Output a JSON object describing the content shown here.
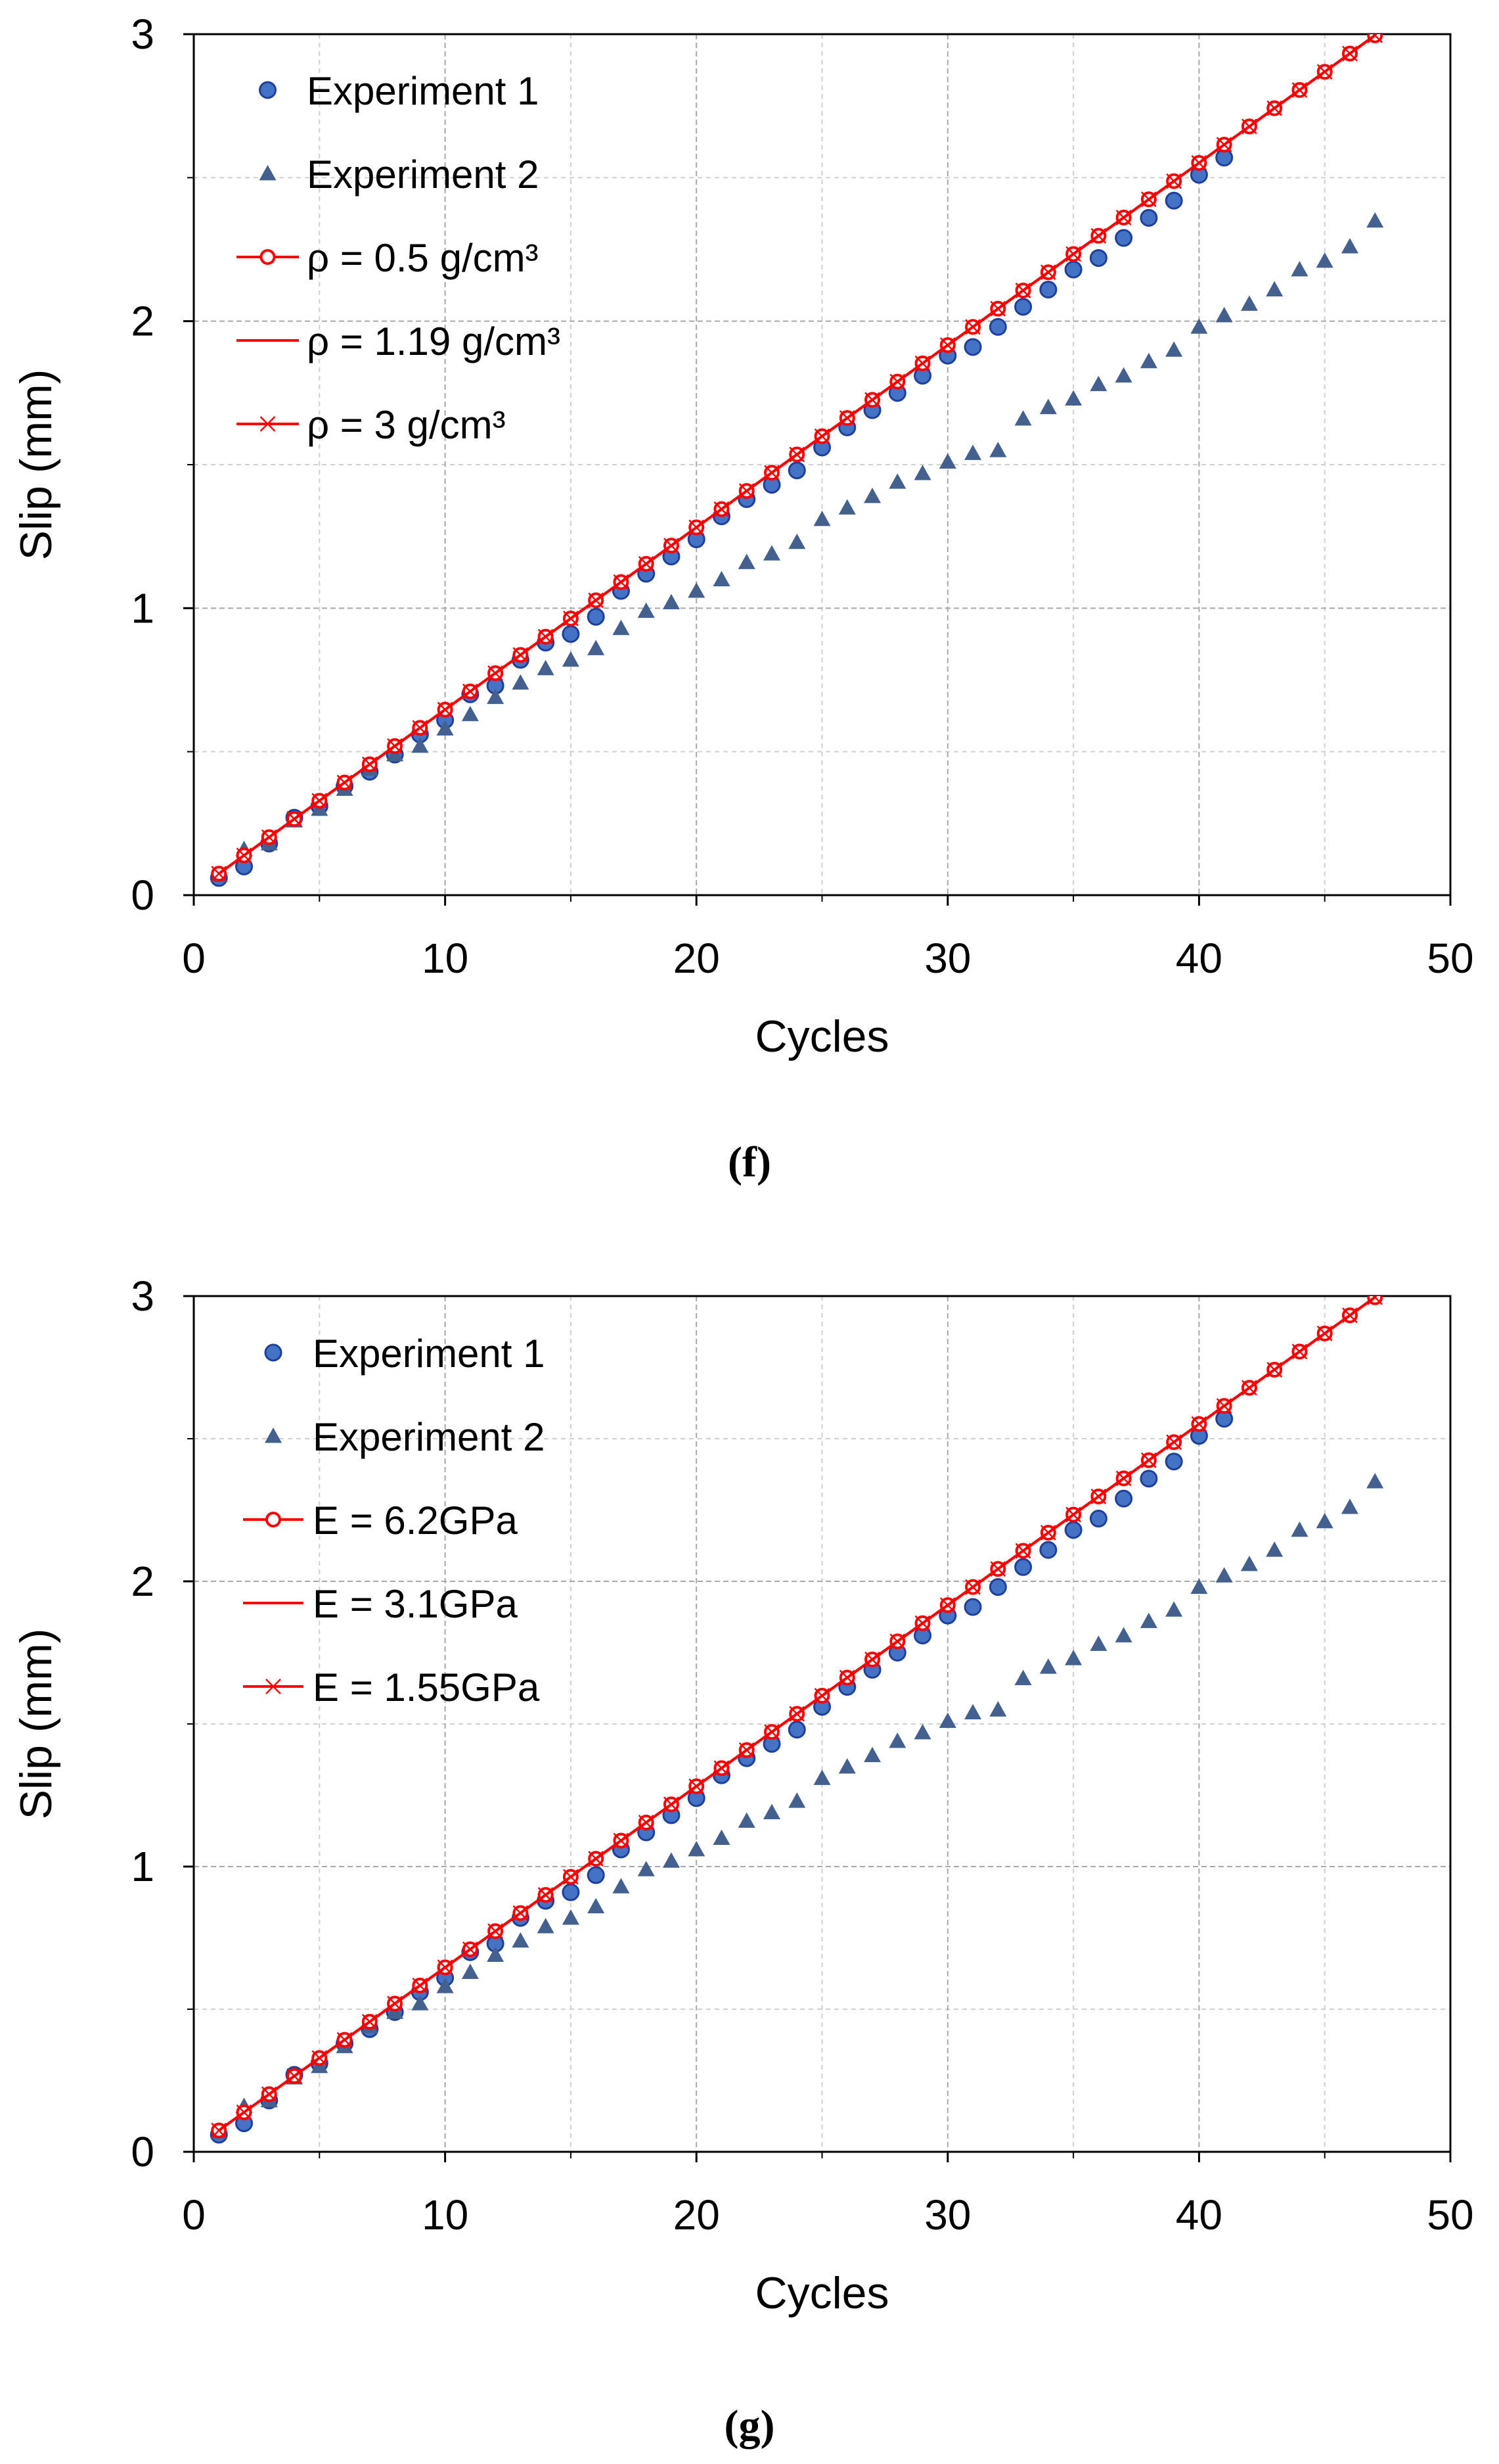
{
  "colors": {
    "experiment_marker_fill": "#4472C4",
    "experiment_marker_edge": "#1F3F9E",
    "triangle_marker": "#44608E",
    "model_line": "#FF0000",
    "grid_major": "#A8A8A8",
    "grid_minor": "#D0D0D0",
    "axis": "#000000"
  },
  "chart_data": [
    {
      "panel": "f",
      "caption": "(f)",
      "type": "line",
      "title": "",
      "xlabel": "Cycles",
      "ylabel": "Slip (mm)",
      "xlim": [
        0,
        50
      ],
      "ylim": [
        0,
        3
      ],
      "xticks": [
        0,
        10,
        20,
        30,
        40,
        50
      ],
      "yticks": [
        0,
        1,
        2,
        3
      ],
      "grid": true,
      "legend_position": "top-left",
      "series": [
        {
          "name": "Experiment 1",
          "kind": "scatter",
          "marker": "circle",
          "x": [
            1,
            2,
            3,
            4,
            5,
            6,
            7,
            8,
            9,
            10,
            11,
            12,
            13,
            14,
            15,
            16,
            17,
            18,
            19,
            20,
            21,
            22,
            23,
            24,
            25,
            26,
            27,
            28,
            29,
            30,
            31,
            32,
            33,
            34,
            35,
            36,
            37,
            38,
            39,
            40,
            41
          ],
          "values": [
            0.06,
            0.1,
            0.18,
            0.27,
            0.31,
            0.38,
            0.43,
            0.49,
            0.56,
            0.61,
            0.7,
            0.73,
            0.82,
            0.88,
            0.91,
            0.97,
            1.06,
            1.12,
            1.18,
            1.24,
            1.32,
            1.38,
            1.43,
            1.48,
            1.56,
            1.63,
            1.69,
            1.75,
            1.81,
            1.88,
            1.91,
            1.98,
            2.05,
            2.11,
            2.18,
            2.22,
            2.29,
            2.36,
            2.42,
            2.51,
            2.57
          ]
        },
        {
          "name": "Experiment 2",
          "kind": "scatter",
          "marker": "triangle",
          "x": [
            1,
            2,
            3,
            4,
            5,
            6,
            7,
            8,
            9,
            10,
            11,
            12,
            13,
            14,
            15,
            16,
            17,
            18,
            19,
            20,
            21,
            22,
            23,
            24,
            25,
            26,
            27,
            28,
            29,
            30,
            31,
            32,
            33,
            34,
            35,
            36,
            37,
            38,
            39,
            40,
            41,
            42,
            43,
            44,
            45,
            46,
            47
          ],
          "values": [
            0.07,
            0.16,
            0.18,
            0.26,
            0.3,
            0.37,
            0.44,
            0.49,
            0.52,
            0.58,
            0.63,
            0.69,
            0.74,
            0.79,
            0.82,
            0.86,
            0.93,
            0.99,
            1.02,
            1.06,
            1.1,
            1.16,
            1.19,
            1.23,
            1.31,
            1.35,
            1.39,
            1.44,
            1.47,
            1.51,
            1.54,
            1.55,
            1.66,
            1.7,
            1.73,
            1.78,
            1.81,
            1.86,
            1.9,
            1.98,
            2.02,
            2.06,
            2.11,
            2.18,
            2.21,
            2.26,
            2.35
          ]
        },
        {
          "name": "ρ = 0.5 g/cm³",
          "kind": "line",
          "marker": "open-circle",
          "x_start": 1,
          "y_start": 0.075,
          "slope": 0.0635,
          "x_end": 47
        },
        {
          "name": "ρ = 1.19 g/cm³",
          "kind": "line",
          "marker": "none",
          "x_start": 1,
          "y_start": 0.075,
          "slope": 0.0635,
          "x_end": 47
        },
        {
          "name": "ρ = 3 g/cm³",
          "kind": "line",
          "marker": "x",
          "x_start": 1,
          "y_start": 0.075,
          "slope": 0.0635,
          "x_end": 47
        }
      ]
    },
    {
      "panel": "g",
      "caption": "(g)",
      "type": "line",
      "title": "",
      "xlabel": "Cycles",
      "ylabel": "Slip (mm)",
      "xlim": [
        0,
        50
      ],
      "ylim": [
        0,
        3
      ],
      "xticks": [
        0,
        10,
        20,
        30,
        40,
        50
      ],
      "yticks": [
        0,
        1,
        2,
        3
      ],
      "grid": true,
      "legend_position": "top-left",
      "series": [
        {
          "name": "Experiment 1",
          "kind": "scatter",
          "marker": "circle",
          "x": [
            1,
            2,
            3,
            4,
            5,
            6,
            7,
            8,
            9,
            10,
            11,
            12,
            13,
            14,
            15,
            16,
            17,
            18,
            19,
            20,
            21,
            22,
            23,
            24,
            25,
            26,
            27,
            28,
            29,
            30,
            31,
            32,
            33,
            34,
            35,
            36,
            37,
            38,
            39,
            40,
            41
          ],
          "values": [
            0.06,
            0.1,
            0.18,
            0.27,
            0.31,
            0.38,
            0.43,
            0.49,
            0.56,
            0.61,
            0.7,
            0.73,
            0.82,
            0.88,
            0.91,
            0.97,
            1.06,
            1.12,
            1.18,
            1.24,
            1.32,
            1.38,
            1.43,
            1.48,
            1.56,
            1.63,
            1.69,
            1.75,
            1.81,
            1.88,
            1.91,
            1.98,
            2.05,
            2.11,
            2.18,
            2.22,
            2.29,
            2.36,
            2.42,
            2.51,
            2.57
          ]
        },
        {
          "name": "Experiment 2",
          "kind": "scatter",
          "marker": "triangle",
          "x": [
            1,
            2,
            3,
            4,
            5,
            6,
            7,
            8,
            9,
            10,
            11,
            12,
            13,
            14,
            15,
            16,
            17,
            18,
            19,
            20,
            21,
            22,
            23,
            24,
            25,
            26,
            27,
            28,
            29,
            30,
            31,
            32,
            33,
            34,
            35,
            36,
            37,
            38,
            39,
            40,
            41,
            42,
            43,
            44,
            45,
            46,
            47
          ],
          "values": [
            0.07,
            0.16,
            0.18,
            0.26,
            0.3,
            0.37,
            0.44,
            0.49,
            0.52,
            0.58,
            0.63,
            0.69,
            0.74,
            0.79,
            0.82,
            0.86,
            0.93,
            0.99,
            1.02,
            1.06,
            1.1,
            1.16,
            1.19,
            1.23,
            1.31,
            1.35,
            1.39,
            1.44,
            1.47,
            1.51,
            1.54,
            1.55,
            1.66,
            1.7,
            1.73,
            1.78,
            1.81,
            1.86,
            1.9,
            1.98,
            2.02,
            2.06,
            2.11,
            2.18,
            2.21,
            2.26,
            2.35
          ]
        },
        {
          "name": "E = 6.2GPa",
          "kind": "line",
          "marker": "open-circle",
          "x_start": 1,
          "y_start": 0.075,
          "slope": 0.0635,
          "x_end": 47
        },
        {
          "name": "E = 3.1GPa",
          "kind": "line",
          "marker": "none",
          "x_start": 1,
          "y_start": 0.075,
          "slope": 0.0635,
          "x_end": 47
        },
        {
          "name": "E = 1.55GPa",
          "kind": "line",
          "marker": "x",
          "x_start": 1,
          "y_start": 0.075,
          "slope": 0.0635,
          "x_end": 47
        }
      ]
    }
  ]
}
